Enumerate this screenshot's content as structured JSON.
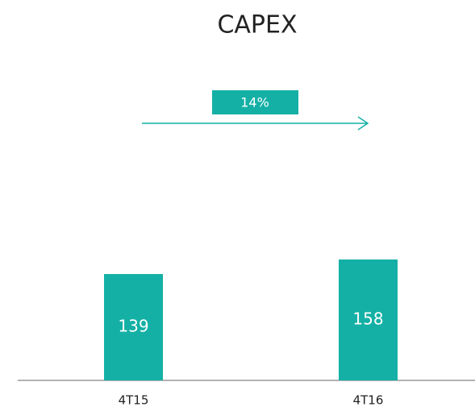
{
  "chart_data": {
    "type": "bar",
    "title": "CAPEX",
    "categories": [
      "4T15",
      "4T16"
    ],
    "values": [
      139,
      158
    ],
    "color": "#14b0a5",
    "annotation": "14%"
  }
}
